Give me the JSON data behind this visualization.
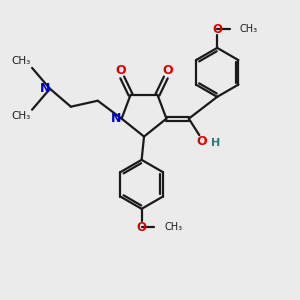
{
  "bg_color": "#ebebeb",
  "bond_color": "#1a1a1a",
  "N_color": "#0000cc",
  "O_color": "#dd0000",
  "OH_color": "#2a7a7a",
  "figsize": [
    3.0,
    3.0
  ],
  "dpi": 100,
  "xlim": [
    0,
    10
  ],
  "ylim": [
    0,
    10
  ]
}
